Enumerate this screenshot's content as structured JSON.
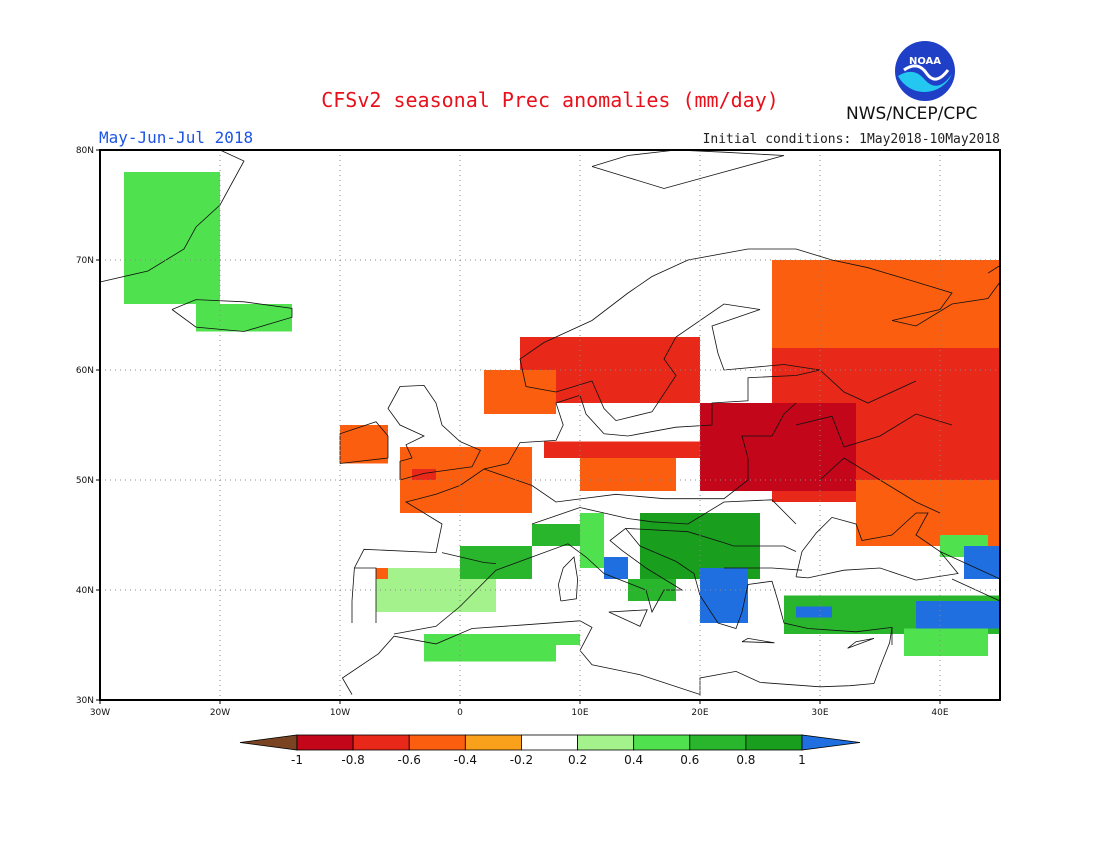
{
  "header": {
    "title": "CFSv2 seasonal Prec anomalies (mm/day)",
    "period": "May-Jun-Jul 2018",
    "initial_conditions": "Initial conditions: 1May2018-10May2018",
    "agency": "NWS/NCEP/CPC",
    "logo_text": "NOAA"
  },
  "map": {
    "projection": "lat-lon",
    "lon_range": [
      -30,
      45
    ],
    "lat_range": [
      30,
      80
    ],
    "lon_ticks": [
      "30W",
      "20W",
      "10W",
      "0",
      "10E",
      "20E",
      "30E",
      "40E"
    ],
    "lat_ticks": [
      "80N",
      "70N",
      "60N",
      "50N",
      "40N",
      "30N"
    ],
    "gridlines": "dotted"
  },
  "colorbar": {
    "labels": [
      "-1",
      "-0.8",
      "-0.6",
      "-0.4",
      "-0.2",
      "0.2",
      "0.4",
      "0.6",
      "0.8",
      "1"
    ],
    "colors": [
      "#7a4423",
      "#c3061a",
      "#e8291a",
      "#fb5e0f",
      "#f9a11a",
      "#ffffff",
      "#a3f28c",
      "#4fe24e",
      "#29b52c",
      "#1a9e1e",
      "#1f6fe0"
    ]
  },
  "anomaly_regions": [
    {
      "name": "Greenland east coast",
      "level": 0.4,
      "cells": [
        [
          -28,
          66,
          -20,
          78
        ]
      ]
    },
    {
      "name": "Iceland south",
      "level": 0.4,
      "cells": [
        [
          -22,
          63.5,
          -14,
          66
        ]
      ]
    },
    {
      "name": "Scandinavia south",
      "level": -0.6,
      "cells": [
        [
          5,
          57,
          20,
          63
        ]
      ]
    },
    {
      "name": "Russia west",
      "level": -0.6,
      "cells": [
        [
          26,
          48,
          45,
          68
        ]
      ]
    },
    {
      "name": "Poland Belarus",
      "level": -0.8,
      "cells": [
        [
          20,
          49,
          33,
          57
        ]
      ]
    },
    {
      "name": "Ireland",
      "level": -0.4,
      "cells": [
        [
          -10,
          51.5,
          -6,
          55
        ]
      ]
    },
    {
      "name": "France Benelux",
      "level": -0.4,
      "cells": [
        [
          -5,
          47,
          6,
          53
        ]
      ]
    },
    {
      "name": "Balkans",
      "level": 0.8,
      "cells": [
        [
          15,
          41,
          25,
          47
        ]
      ]
    },
    {
      "name": "Greece",
      "level": 1.0,
      "cells": [
        [
          20,
          37,
          24,
          42
        ]
      ]
    },
    {
      "name": "Turkey",
      "level": 0.6,
      "cells": [
        [
          27,
          36,
          45,
          39.5
        ]
      ]
    },
    {
      "name": "Caucasus east",
      "level": 1.0,
      "cells": [
        [
          38,
          36.5,
          45,
          39
        ]
      ]
    },
    {
      "name": "North Africa",
      "level": 0.4,
      "cells": [
        [
          -3,
          33.5,
          8,
          36
        ]
      ]
    },
    {
      "name": "Iberia north",
      "level": 0.2,
      "cells": [
        [
          -7,
          38,
          3,
          42
        ]
      ]
    }
  ]
}
